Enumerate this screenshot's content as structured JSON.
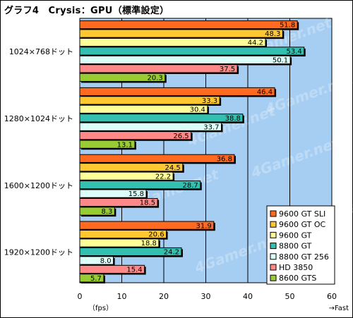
{
  "title": "グラフ4　Crysis：GPU（標準設定）",
  "chart_data": {
    "type": "bar",
    "orientation": "horizontal",
    "title": "グラフ4　Crysis：GPU（標準設定）",
    "categories": [
      "1024×768ドット",
      "1280×1024ドット",
      "1600×1200ドット",
      "1920×1200ドット"
    ],
    "series": [
      {
        "name": "9600 GT SLI",
        "color": "#ff6a21",
        "values": [
          51.8,
          46.4,
          36.8,
          31.9
        ]
      },
      {
        "name": "9600 GT OC",
        "color": "#ffc830",
        "values": [
          48.3,
          33.3,
          24.5,
          20.6
        ]
      },
      {
        "name": "9600 GT",
        "color": "#ffff99",
        "values": [
          44.2,
          30.4,
          22.2,
          18.8
        ]
      },
      {
        "name": "8800 GT",
        "color": "#33c0b0",
        "values": [
          53.4,
          38.8,
          28.7,
          24.2
        ]
      },
      {
        "name": "8800 GT 256",
        "color": "#ddfffa",
        "values": [
          50.1,
          33.7,
          15.8,
          8.0
        ]
      },
      {
        "name": "HD 3850",
        "color": "#ff8888",
        "values": [
          37.5,
          26.5,
          18.5,
          15.4
        ]
      },
      {
        "name": "8600 GTS",
        "color": "#99cc33",
        "values": [
          20.3,
          13.1,
          8.3,
          5.7
        ]
      }
    ],
    "xlim": [
      0,
      60
    ],
    "xticks": [
      0,
      10,
      20,
      30,
      40,
      50,
      60
    ],
    "xlabel": "（fps）",
    "xlabel_right": "→Fast",
    "grid": true,
    "legend_position": "bottom-right",
    "background_color": "#a6cdf2",
    "watermark": "4Gamer.net"
  }
}
